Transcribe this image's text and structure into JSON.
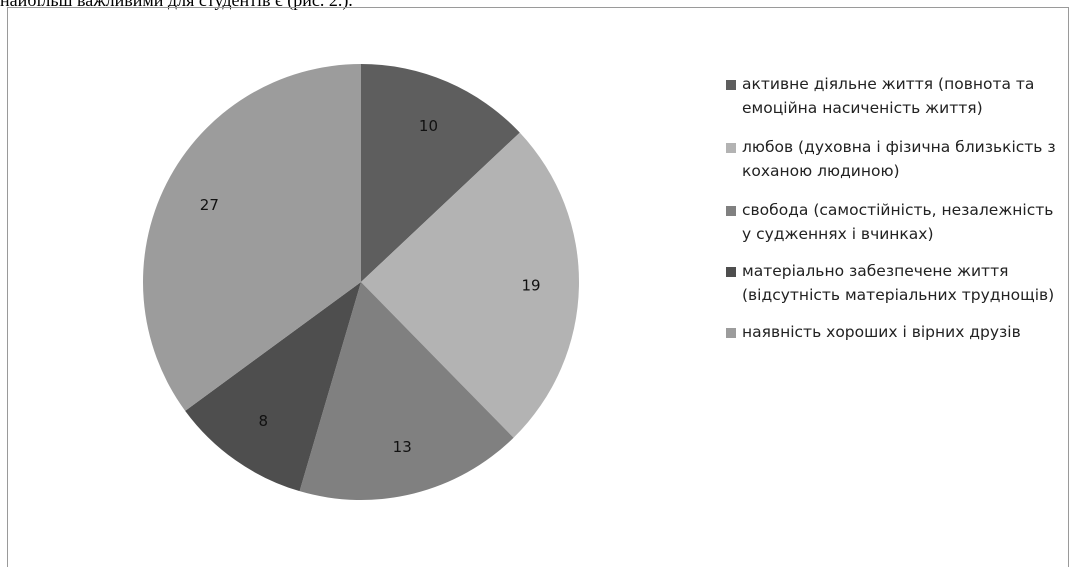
{
  "header": {
    "text": "найбільш важливими для студентів є (рис. 2.)."
  },
  "chart_data": {
    "type": "pie",
    "start_angle_deg": 0,
    "direction": "clockwise",
    "slices": [
      {
        "label": "активне діяльне життя (повнота та емоційна насиченість життя)",
        "value": 10,
        "color": "#5e5e5e"
      },
      {
        "label": "любов (духовна і фізична близькість з коханою людиною)",
        "value": 19,
        "color": "#b3b3b3"
      },
      {
        "label": "свобода (самостійність, незалежність у судженнях і вчинках)",
        "value": 13,
        "color": "#808080"
      },
      {
        "label": "матеріально забезпечене життя (відсутність матеріальних труднощів)",
        "value": 8,
        "color": "#4e4e4e"
      },
      {
        "label": "наявність хороших і вірних друзів",
        "value": 27,
        "color": "#9c9c9c"
      }
    ],
    "legend_position": "right"
  }
}
